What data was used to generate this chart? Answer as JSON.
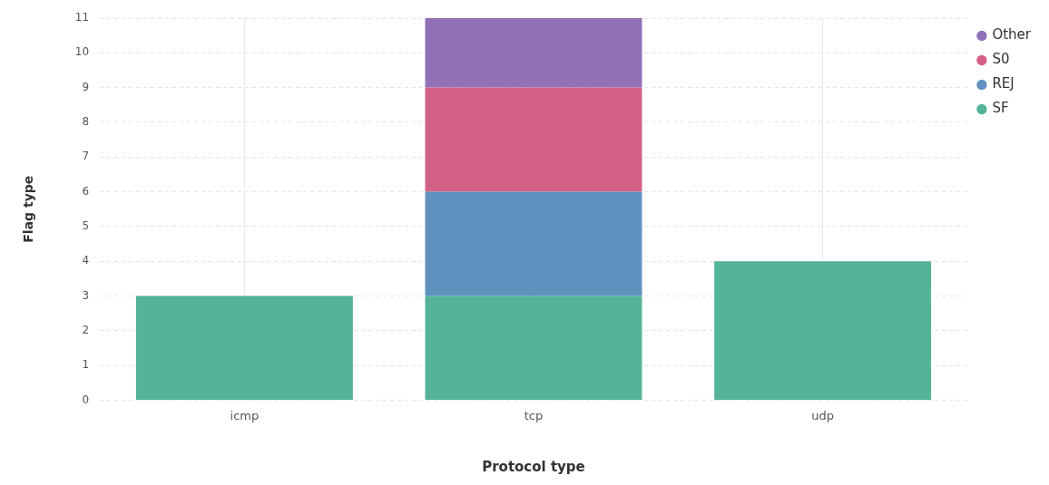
{
  "chart_data": {
    "type": "bar",
    "stacked": true,
    "xlabel": "Protocol type",
    "ylabel": "Flag type",
    "categories": [
      "icmp",
      "tcp",
      "udp"
    ],
    "series": [
      {
        "name": "SF",
        "color": "#54b399",
        "values": [
          3,
          3,
          4
        ]
      },
      {
        "name": "REJ",
        "color": "#6092c0",
        "values": [
          null,
          3,
          null
        ]
      },
      {
        "name": "S0",
        "color": "#d36086",
        "values": [
          null,
          3,
          null
        ]
      },
      {
        "name": "Other",
        "color": "#9170b8",
        "values": [
          null,
          2,
          null
        ]
      }
    ],
    "ylim": [
      0,
      11
    ],
    "yticks": [
      0,
      1,
      2,
      3,
      4,
      5,
      6,
      7,
      8,
      9,
      10,
      11
    ],
    "grid": true,
    "legend": "top right"
  }
}
